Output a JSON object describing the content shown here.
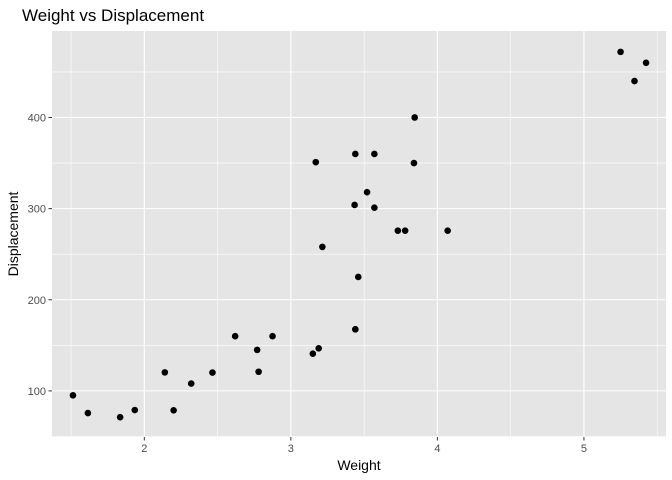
{
  "chart_data": {
    "type": "scatter",
    "title": "Weight vs Displacement",
    "xlabel": "Weight",
    "ylabel": "Displacement",
    "xlim": [
      1.37,
      5.56
    ],
    "ylim": [
      49.4,
      494.9
    ],
    "x_ticks": [
      2,
      3,
      4,
      5
    ],
    "y_ticks": [
      100,
      200,
      300,
      400
    ],
    "x_minor": [
      1.5,
      2.5,
      3.5,
      4.5,
      5.5
    ],
    "y_minor": [
      50,
      150,
      250,
      350,
      450
    ],
    "grid": true,
    "legend": "none",
    "colors": {
      "panel": "#e5e5e5",
      "grid": "#ffffff",
      "point": "#000000",
      "tick_text": "#4d4d4d",
      "tick_mark": "#333333"
    },
    "points": [
      {
        "x": 2.62,
        "y": 160
      },
      {
        "x": 2.875,
        "y": 160
      },
      {
        "x": 2.32,
        "y": 108
      },
      {
        "x": 3.215,
        "y": 258
      },
      {
        "x": 3.44,
        "y": 360
      },
      {
        "x": 3.46,
        "y": 225
      },
      {
        "x": 3.57,
        "y": 360
      },
      {
        "x": 3.19,
        "y": 146.7
      },
      {
        "x": 3.15,
        "y": 140.8
      },
      {
        "x": 3.44,
        "y": 167.6
      },
      {
        "x": 3.44,
        "y": 167.6
      },
      {
        "x": 4.07,
        "y": 275.8
      },
      {
        "x": 3.73,
        "y": 275.8
      },
      {
        "x": 3.78,
        "y": 275.8
      },
      {
        "x": 5.25,
        "y": 472
      },
      {
        "x": 5.424,
        "y": 460
      },
      {
        "x": 5.345,
        "y": 440
      },
      {
        "x": 2.2,
        "y": 78.7
      },
      {
        "x": 1.615,
        "y": 75.7
      },
      {
        "x": 1.835,
        "y": 71.1
      },
      {
        "x": 2.465,
        "y": 120.1
      },
      {
        "x": 3.52,
        "y": 318
      },
      {
        "x": 3.435,
        "y": 304
      },
      {
        "x": 3.84,
        "y": 350
      },
      {
        "x": 3.845,
        "y": 400
      },
      {
        "x": 1.935,
        "y": 79
      },
      {
        "x": 2.14,
        "y": 120.3
      },
      {
        "x": 1.513,
        "y": 95.1
      },
      {
        "x": 3.17,
        "y": 351
      },
      {
        "x": 2.77,
        "y": 145
      },
      {
        "x": 3.57,
        "y": 301
      },
      {
        "x": 2.78,
        "y": 121
      }
    ]
  }
}
